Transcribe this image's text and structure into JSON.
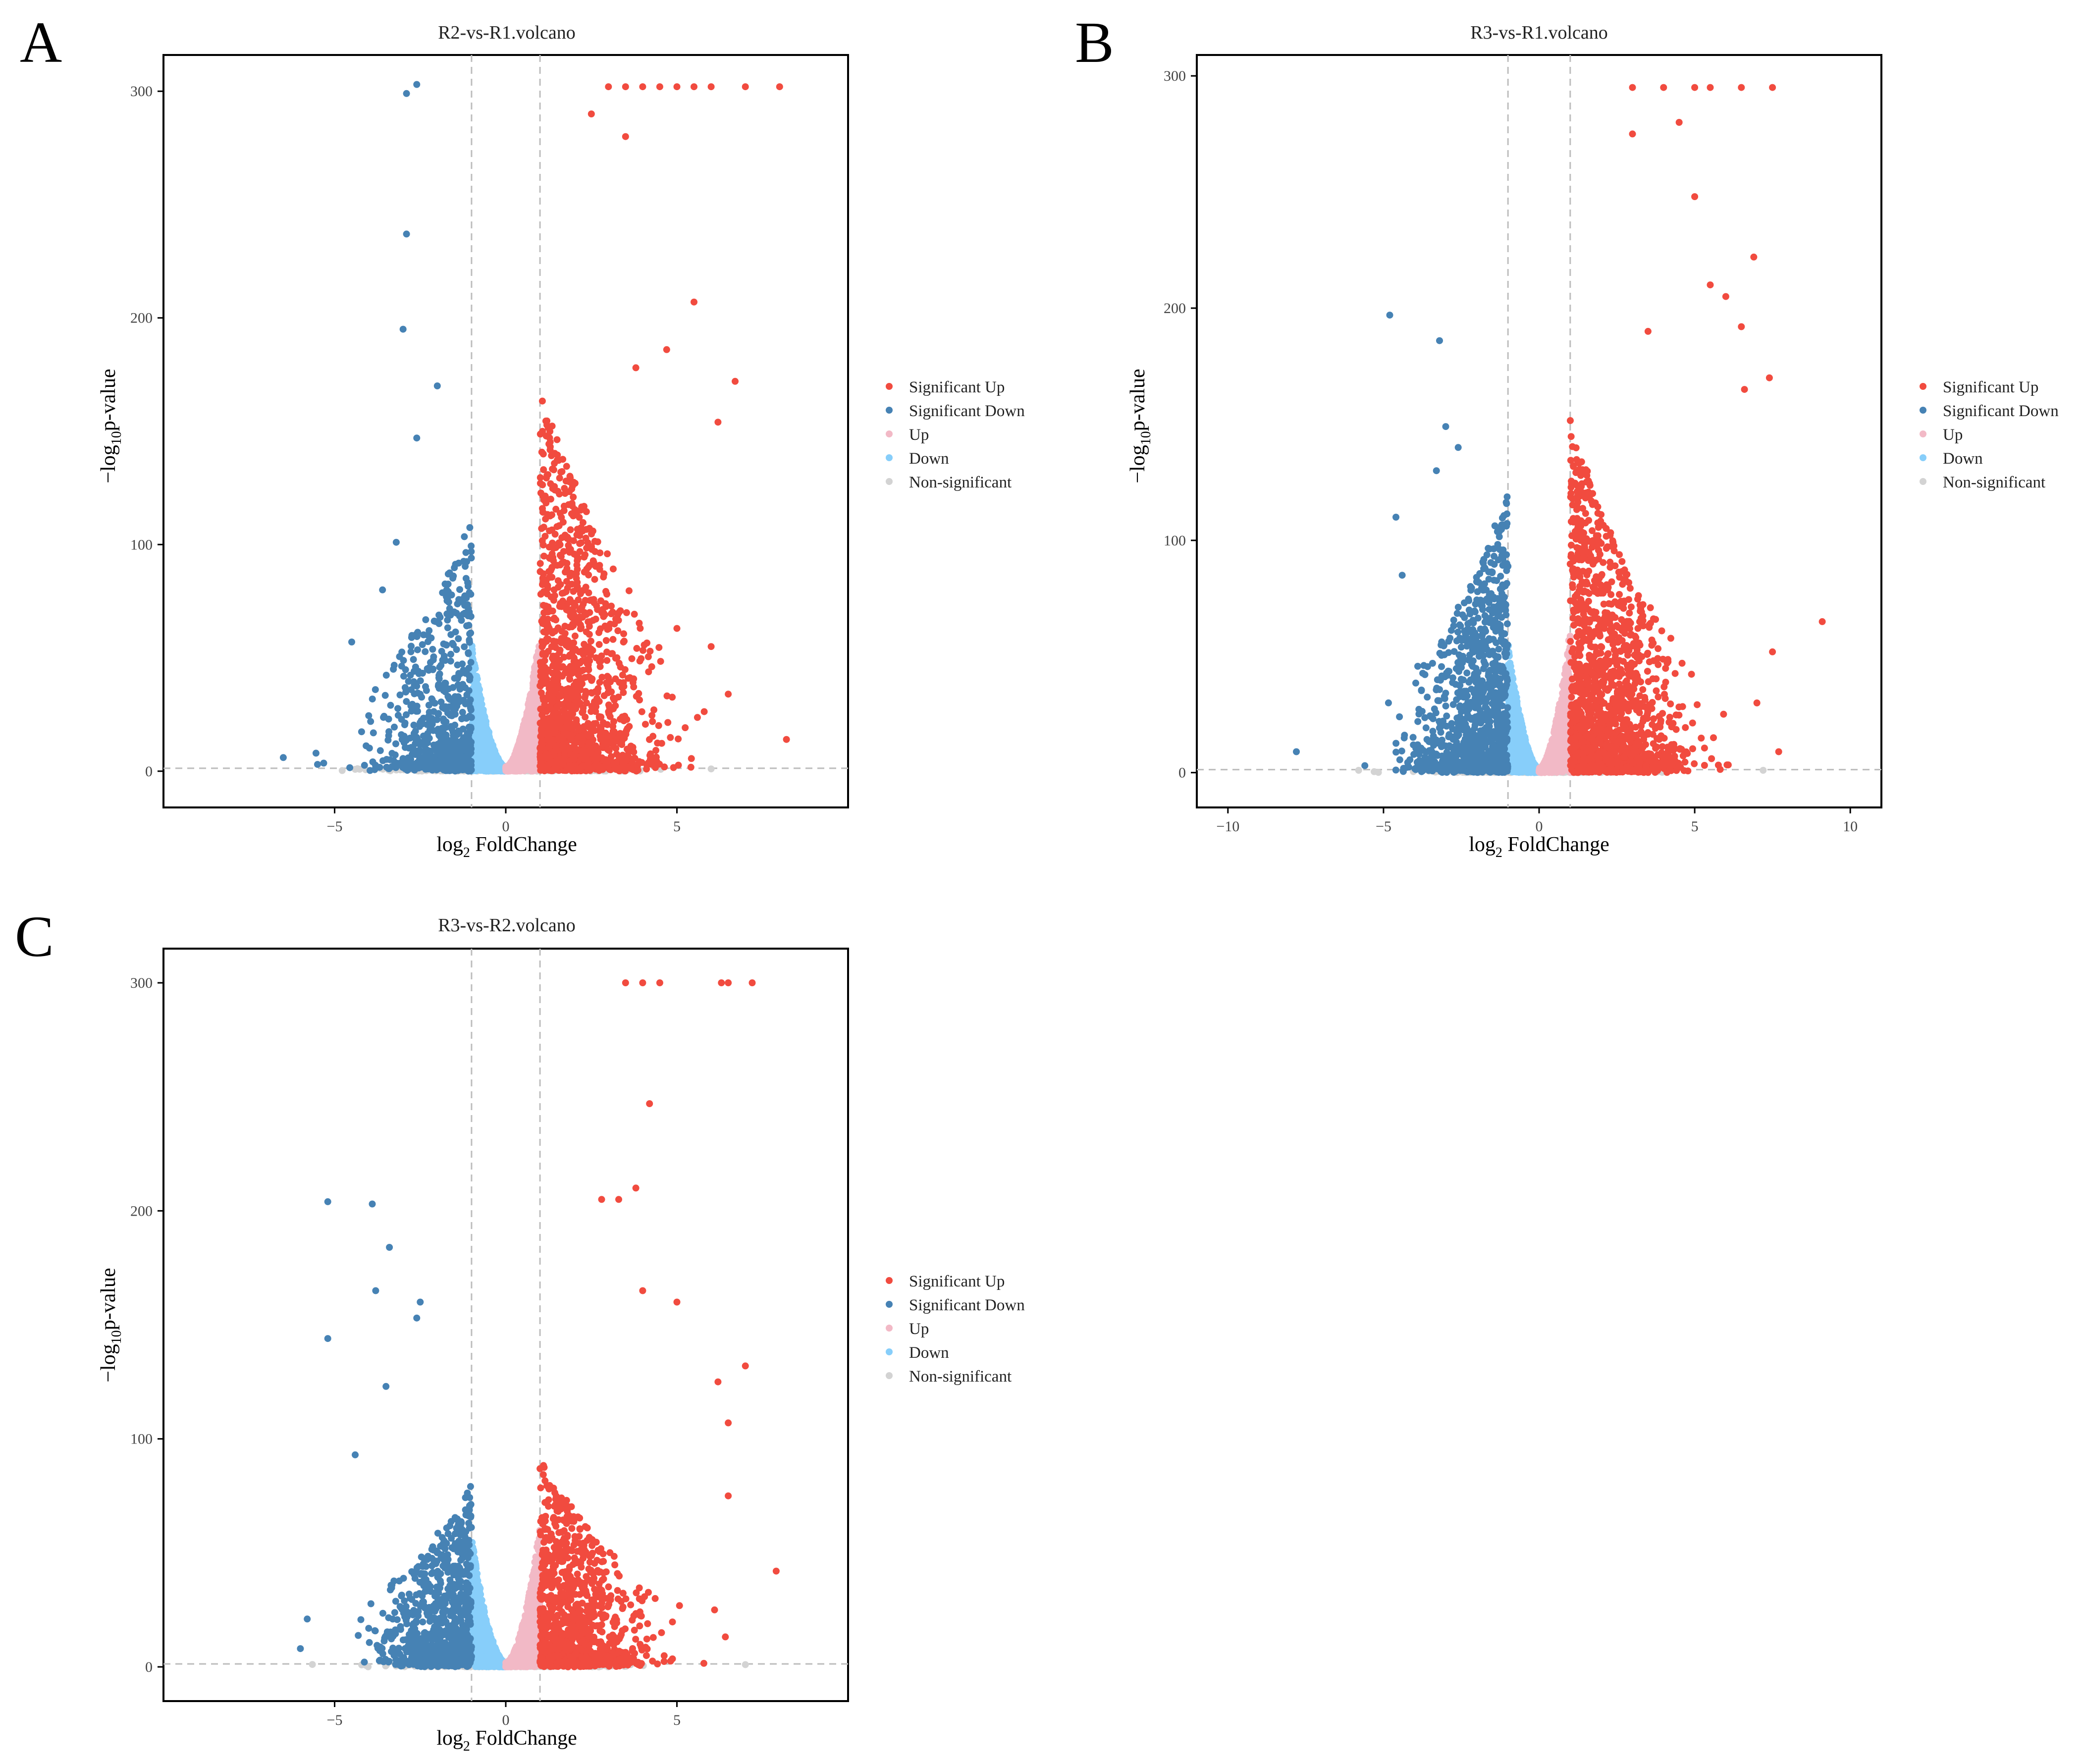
{
  "colors": {
    "sig_up": "#F14B3F",
    "sig_down": "#4682B4",
    "up": "#F2B9C6",
    "down": "#87CEFA",
    "ns": "#D3D3D3",
    "guide": "#BDBDBD",
    "axis": "#000000",
    "text": "#222222"
  },
  "chart_data": [
    {
      "panel_label": "A",
      "type": "scatter",
      "title": "R2-vs-R1.volcano",
      "xlabel_main": "log",
      "xlabel_sub": "2",
      "xlabel_rest": " FoldChange",
      "ylabel_main": "−log",
      "ylabel_sub": "10",
      "ylabel_rest": "p-value",
      "xlim": [
        -10,
        10
      ],
      "ylim": [
        -16,
        316
      ],
      "xticks": [
        -5,
        0,
        5
      ],
      "xtick_labels": [
        "−5",
        "0",
        "5"
      ],
      "yticks": [
        0,
        100,
        200,
        300
      ],
      "ytick_labels": [
        "0",
        "100",
        "200",
        "300"
      ],
      "fc_threshold": [
        -1,
        1
      ],
      "p_threshold_line": 1.3,
      "legend_position": "right",
      "legend": [
        "Significant Up",
        "Significant Down",
        "Up",
        "Down",
        "Non-significant"
      ],
      "notable_points": {
        "sig_up": [
          [
            3.0,
            302
          ],
          [
            3.5,
            302
          ],
          [
            4.0,
            302
          ],
          [
            4.5,
            302
          ],
          [
            5.0,
            302
          ],
          [
            5.5,
            302
          ],
          [
            6.0,
            302
          ],
          [
            7.0,
            302
          ],
          [
            8.0,
            302
          ],
          [
            2.5,
            290
          ],
          [
            3.5,
            280
          ],
          [
            5.5,
            207
          ],
          [
            4.7,
            186
          ],
          [
            6.7,
            172
          ],
          [
            6.2,
            154
          ],
          [
            3.8,
            178
          ],
          [
            5.0,
            63
          ],
          [
            6.0,
            55
          ],
          [
            6.5,
            34
          ],
          [
            8.2,
            14
          ]
        ],
        "sig_down": [
          [
            -2.6,
            303
          ],
          [
            -2.9,
            299
          ],
          [
            -2.9,
            237
          ],
          [
            -3.0,
            195
          ],
          [
            -2.0,
            170
          ],
          [
            -2.6,
            147
          ],
          [
            -3.2,
            101
          ],
          [
            -3.6,
            80
          ],
          [
            -4.5,
            57
          ],
          [
            -6.5,
            6
          ],
          [
            -5.5,
            3
          ]
        ],
        "up": [],
        "down": [],
        "ns": [
          [
            6.0,
            1
          ]
        ]
      },
      "cloud": {
        "sig_up_count": 1500,
        "sig_down_count": 700,
        "up_count": 900,
        "down_count": 900,
        "ns_count": 400,
        "up_spread": 1.4,
        "down_spread": 1.2,
        "up_height": 170,
        "down_height": 110
      }
    },
    {
      "panel_label": "B",
      "type": "scatter",
      "title": "R3-vs-R1.volcano",
      "xlabel_main": "log",
      "xlabel_sub": "2",
      "xlabel_rest": " FoldChange",
      "ylabel_main": "−log",
      "ylabel_sub": "10",
      "ylabel_rest": "p-value",
      "xlim": [
        -11,
        11
      ],
      "ylim": [
        -15,
        309
      ],
      "xticks": [
        -10,
        -5,
        0,
        5,
        10
      ],
      "xtick_labels": [
        "−10",
        "−5",
        "0",
        "5",
        "10"
      ],
      "yticks": [
        0,
        100,
        200,
        300
      ],
      "ytick_labels": [
        "0",
        "100",
        "200",
        "300"
      ],
      "fc_threshold": [
        -1,
        1
      ],
      "p_threshold_line": 1.3,
      "legend_position": "right",
      "legend": [
        "Significant Up",
        "Significant Down",
        "Up",
        "Down",
        "Non-significant"
      ],
      "notable_points": {
        "sig_up": [
          [
            3.0,
            295
          ],
          [
            4.0,
            295
          ],
          [
            5.0,
            295
          ],
          [
            5.5,
            295
          ],
          [
            6.5,
            295
          ],
          [
            7.5,
            295
          ],
          [
            3.0,
            275
          ],
          [
            4.5,
            280
          ],
          [
            5.0,
            248
          ],
          [
            6.9,
            222
          ],
          [
            5.5,
            210
          ],
          [
            6.0,
            205
          ],
          [
            6.5,
            192
          ],
          [
            3.5,
            190
          ],
          [
            7.4,
            170
          ],
          [
            6.6,
            165
          ],
          [
            9.1,
            65
          ],
          [
            7.5,
            52
          ],
          [
            7.0,
            30
          ],
          [
            7.7,
            9
          ]
        ],
        "sig_down": [
          [
            -4.8,
            197
          ],
          [
            -3.2,
            186
          ],
          [
            -3.0,
            149
          ],
          [
            -2.6,
            140
          ],
          [
            -3.3,
            130
          ],
          [
            -4.6,
            110
          ],
          [
            -4.4,
            85
          ],
          [
            -7.8,
            9
          ],
          [
            -5.6,
            3
          ]
        ],
        "up": [],
        "down": [],
        "ns": [
          [
            7.2,
            1
          ],
          [
            -5.8,
            1
          ]
        ]
      },
      "cloud": {
        "sig_up_count": 1700,
        "sig_down_count": 1100,
        "up_count": 800,
        "down_count": 800,
        "ns_count": 400,
        "up_spread": 1.5,
        "down_spread": 1.3,
        "up_height": 150,
        "down_height": 120
      }
    },
    {
      "panel_label": "C",
      "type": "scatter",
      "title": "R3-vs-R2.volcano",
      "xlabel_main": "log",
      "xlabel_sub": "2",
      "xlabel_rest": " FoldChange",
      "ylabel_main": "−log",
      "ylabel_sub": "10",
      "ylabel_rest": "p-value",
      "xlim": [
        -10,
        10
      ],
      "ylim": [
        -15,
        315
      ],
      "xticks": [
        -5,
        0,
        5
      ],
      "xtick_labels": [
        "−5",
        "0",
        "5"
      ],
      "yticks": [
        0,
        100,
        200,
        300
      ],
      "ytick_labels": [
        "0",
        "100",
        "200",
        "300"
      ],
      "fc_threshold": [
        -1,
        1
      ],
      "p_threshold_line": 1.3,
      "legend_position": "right",
      "legend": [
        "Significant Up",
        "Significant Down",
        "Up",
        "Down",
        "Non-significant"
      ],
      "notable_points": {
        "sig_up": [
          [
            3.5,
            300
          ],
          [
            4.0,
            300
          ],
          [
            4.5,
            300
          ],
          [
            6.3,
            300
          ],
          [
            6.5,
            300
          ],
          [
            7.2,
            300
          ],
          [
            4.2,
            247
          ],
          [
            3.8,
            210
          ],
          [
            3.3,
            205
          ],
          [
            2.8,
            205
          ],
          [
            5.0,
            160
          ],
          [
            4.0,
            165
          ],
          [
            6.2,
            125
          ],
          [
            7.0,
            132
          ],
          [
            6.5,
            107
          ],
          [
            6.5,
            75
          ],
          [
            7.9,
            42
          ],
          [
            6.1,
            25
          ]
        ],
        "sig_down": [
          [
            -5.2,
            204
          ],
          [
            -3.9,
            203
          ],
          [
            -3.4,
            184
          ],
          [
            -2.5,
            160
          ],
          [
            -3.8,
            165
          ],
          [
            -2.6,
            153
          ],
          [
            -5.2,
            144
          ],
          [
            -3.5,
            123
          ],
          [
            -4.4,
            93
          ],
          [
            -6.0,
            8
          ],
          [
            -5.8,
            21
          ]
        ],
        "up": [],
        "down": [],
        "ns": [
          [
            7.0,
            1
          ]
        ]
      },
      "cloud": {
        "sig_up_count": 1100,
        "sig_down_count": 900,
        "up_count": 800,
        "down_count": 800,
        "ns_count": 400,
        "up_spread": 1.3,
        "down_spread": 1.1,
        "up_height": 90,
        "down_height": 80
      }
    }
  ]
}
